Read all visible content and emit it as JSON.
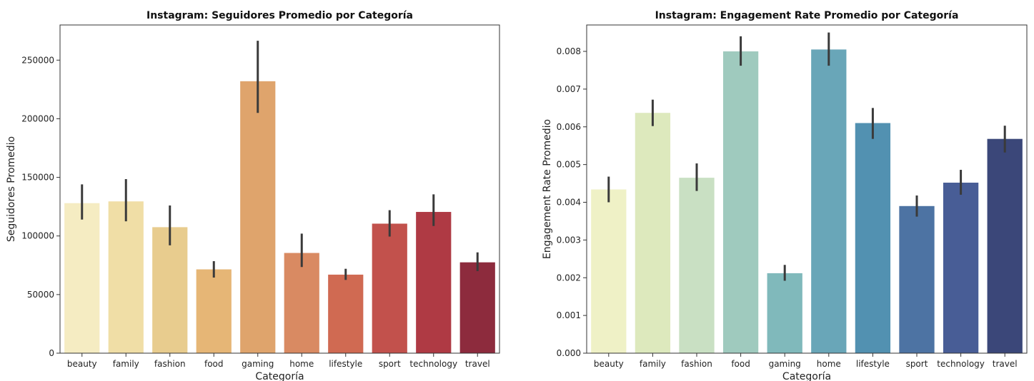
{
  "chart_data": [
    {
      "type": "bar",
      "title": "Instagram: Seguidores Promedio por Categoría",
      "xlabel": "Categoría",
      "ylabel": "Seguidores Promedio",
      "ylim": [
        0,
        280000
      ],
      "yticks": [
        0,
        50000,
        100000,
        150000,
        200000,
        250000
      ],
      "ytick_labels": [
        "0",
        "50000",
        "100000",
        "150000",
        "200000",
        "250000"
      ],
      "categories": [
        "beauty",
        "family",
        "fashion",
        "food",
        "gaming",
        "home",
        "lifestyle",
        "sport",
        "technology",
        "travel"
      ],
      "values": [
        128000,
        129500,
        107500,
        71500,
        232000,
        85500,
        67000,
        110500,
        120500,
        77500
      ],
      "error_low": [
        114000,
        112500,
        92000,
        64500,
        205000,
        73500,
        62500,
        99500,
        108500,
        70000
      ],
      "error_high": [
        144000,
        148500,
        126000,
        78500,
        266500,
        102000,
        72000,
        122000,
        135500,
        86000
      ],
      "colors": [
        "#f5ecc2",
        "#f0dea6",
        "#e8cc8e",
        "#e6b676",
        "#dfa46c",
        "#d98a62",
        "#d06a52",
        "#c2514c",
        "#af3a44",
        "#8d2b3d"
      ],
      "grid": false,
      "legend": "none"
    },
    {
      "type": "bar",
      "title": "Instagram: Engagement Rate Promedio por Categoría",
      "xlabel": "Categoría",
      "ylabel": "Engagement Rate Promedio",
      "ylim": [
        0,
        0.0087
      ],
      "yticks": [
        0,
        0.001,
        0.002,
        0.003,
        0.004,
        0.005,
        0.006,
        0.007,
        0.008
      ],
      "ytick_labels": [
        "0.000",
        "0.001",
        "0.002",
        "0.003",
        "0.004",
        "0.005",
        "0.006",
        "0.007",
        "0.008"
      ],
      "categories": [
        "beauty",
        "family",
        "fashion",
        "food",
        "gaming",
        "home",
        "lifestyle",
        "sport",
        "technology",
        "travel"
      ],
      "values": [
        0.00434,
        0.00637,
        0.00465,
        0.008,
        0.00212,
        0.00805,
        0.0061,
        0.0039,
        0.00452,
        0.00568
      ],
      "error_low": [
        0.004,
        0.00602,
        0.0043,
        0.00762,
        0.00192,
        0.00762,
        0.00568,
        0.00362,
        0.0042,
        0.00532
      ],
      "error_high": [
        0.00468,
        0.00672,
        0.00503,
        0.0084,
        0.00234,
        0.0085,
        0.0065,
        0.00418,
        0.00486,
        0.00603
      ],
      "colors": [
        "#eff1c6",
        "#dde9bd",
        "#c9e0c3",
        "#9fcabe",
        "#80b9bb",
        "#69a6b8",
        "#5291b1",
        "#4d73a3",
        "#485d96",
        "#3b4779"
      ],
      "grid": false,
      "legend": "none"
    }
  ]
}
